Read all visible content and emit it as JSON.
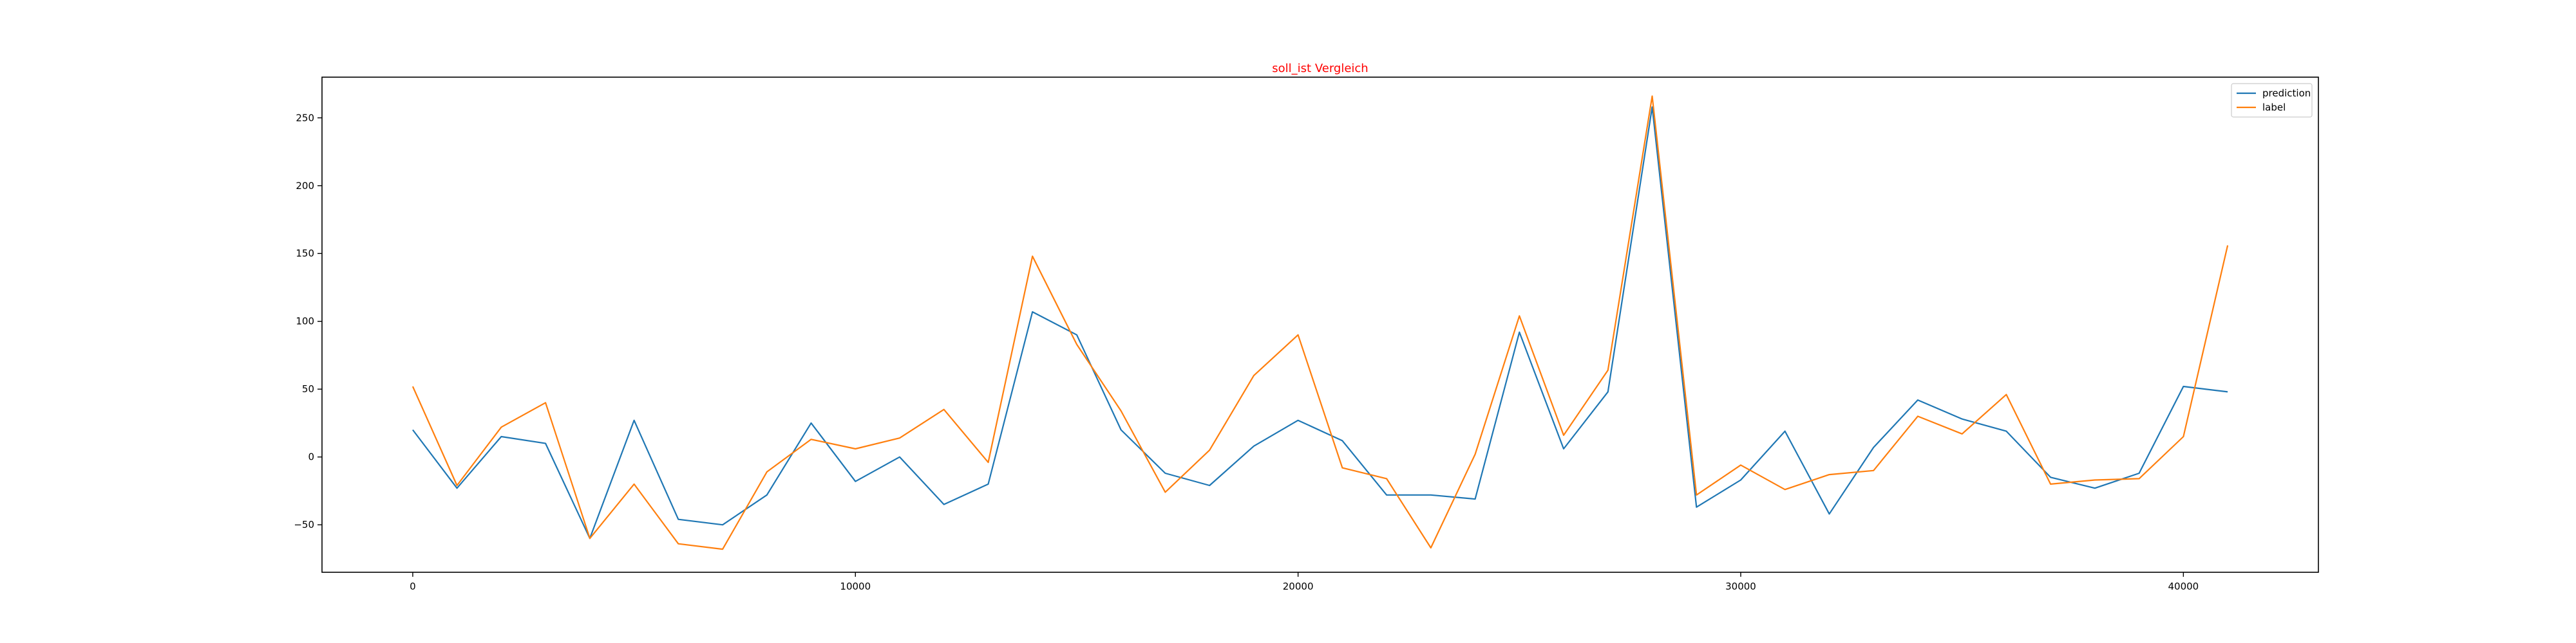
{
  "chart_data": {
    "type": "line",
    "title": "soll_ist Vergleich",
    "title_color": "#ff0000",
    "xlabel": "",
    "ylabel": "",
    "xlim": [
      -2050,
      43050
    ],
    "ylim": [
      -85,
      280
    ],
    "xticks": [
      0,
      10000,
      20000,
      30000,
      40000
    ],
    "yticks": [
      -50,
      0,
      50,
      100,
      150,
      200,
      250
    ],
    "grid": false,
    "legend_position": "top-right",
    "x": [
      0,
      1000,
      2000,
      3000,
      4000,
      5000,
      6000,
      7000,
      8000,
      9000,
      10000,
      11000,
      12000,
      13000,
      14000,
      15000,
      16000,
      17000,
      18000,
      19000,
      20000,
      21000,
      22000,
      23000,
      24000,
      25000,
      26000,
      27000,
      28000,
      29000,
      30000,
      31000,
      32000,
      33000,
      34000,
      35000,
      36000,
      37000,
      38000,
      39000,
      40000,
      41000
    ],
    "series": [
      {
        "name": "prediction",
        "color": "#1f77b4",
        "values": [
          20,
          -23,
          15,
          10,
          -60,
          27,
          -46,
          -50,
          -28,
          25,
          -18,
          0,
          -35,
          -20,
          107,
          90,
          20,
          -12,
          -21,
          8,
          27,
          12,
          -28,
          -28,
          -31,
          92,
          6,
          48,
          258,
          -37,
          -17,
          19,
          -42,
          7,
          42,
          28,
          19,
          -15,
          -23,
          -12,
          52,
          48
        ]
      },
      {
        "name": "label",
        "color": "#ff7f0e",
        "values": [
          52,
          -21,
          22,
          40,
          -60,
          -20,
          -64,
          -68,
          -11,
          13,
          6,
          14,
          35,
          -4,
          148,
          83,
          34,
          -26,
          5,
          60,
          90,
          -8,
          -16,
          -67,
          2,
          104,
          16,
          64,
          266,
          -28,
          -6,
          -24,
          -13,
          -10,
          30,
          17,
          46,
          -20,
          -17,
          -16,
          15,
          156
        ]
      }
    ]
  }
}
